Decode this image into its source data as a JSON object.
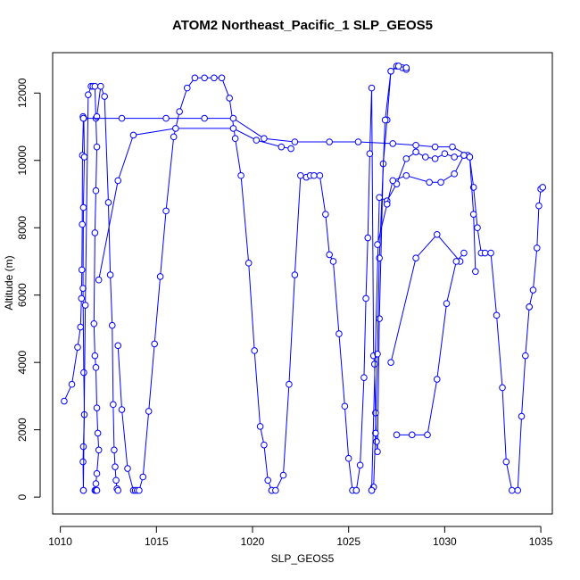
{
  "chart_data": {
    "type": "line",
    "title": "ATOM2 Northeast_Pacific_1 SLP_GEOS5",
    "xlabel": "SLP_GEOS5",
    "ylabel": "Altitude (m)",
    "xlim": [
      1009.6,
      1035.6
    ],
    "ylim": [
      -500,
      13200
    ],
    "x_ticks": [
      1010,
      1015,
      1020,
      1025,
      1030,
      1035
    ],
    "y_ticks": [
      0,
      2000,
      4000,
      6000,
      8000,
      10000,
      12000
    ],
    "grid": false,
    "marker": "open-circle",
    "line_color": "#0000ff",
    "series": [
      {
        "segment": "profile-1",
        "x": [
          1010.2,
          1010.6,
          1010.9,
          1011.05,
          1011.1,
          1011.12,
          1011.14,
          1011.15,
          1011.2,
          1011.18,
          1011.22,
          1011.25,
          1011.2,
          1011.18,
          1011.22,
          1011.25,
          1011.2,
          1011.18,
          1011.2
        ],
        "y": [
          2850,
          3350,
          4450,
          5050,
          5900,
          6750,
          8100,
          10150,
          11250,
          11300,
          11250,
          10100,
          8600,
          6200,
          3700,
          2450,
          1500,
          1050,
          200
        ]
      },
      {
        "segment": "profile-2",
        "x": [
          1011.2,
          1011.3,
          1011.45,
          1011.6,
          1011.7,
          1011.8,
          1011.85,
          1011.9,
          1011.85,
          1011.8,
          1011.75,
          1011.8,
          1011.85,
          1011.9,
          1011.95,
          1012.0,
          1011.9,
          1011.85,
          1011.8,
          1011.85,
          1011.9
        ],
        "y": [
          200,
          5700,
          11950,
          12200,
          12200,
          12200,
          11250,
          10400,
          9100,
          7850,
          5150,
          4200,
          3850,
          2650,
          1900,
          1400,
          700,
          400,
          200,
          200,
          200
        ]
      },
      {
        "segment": "profile-3",
        "x": [
          1011.9,
          1012.1,
          1012.3,
          1012.5,
          1012.6,
          1012.7,
          1012.75,
          1012.8,
          1012.85,
          1012.9,
          1012.95,
          1013.0
        ],
        "y": [
          11300,
          12200,
          11900,
          8750,
          6600,
          5100,
          2750,
          1400,
          900,
          500,
          250,
          200
        ]
      },
      {
        "segment": "profile-4",
        "x": [
          1013.0,
          1013.2,
          1013.5,
          1013.8,
          1013.9,
          1014.0,
          1014.1,
          1014.3,
          1014.6,
          1014.9,
          1015.2,
          1015.5,
          1015.9,
          1016.2,
          1016.6,
          1017.0,
          1017.5,
          1018.0,
          1018.4,
          1018.8,
          1019.1,
          1019.4,
          1019.8,
          1020.1,
          1020.4,
          1020.6,
          1020.8,
          1021.0
        ],
        "y": [
          4500,
          2600,
          850,
          200,
          200,
          200,
          200,
          600,
          2550,
          4550,
          6550,
          8500,
          10700,
          11450,
          12150,
          12450,
          12450,
          12450,
          12450,
          11850,
          10650,
          9550,
          6950,
          4350,
          2100,
          1550,
          500,
          200
        ]
      },
      {
        "segment": "profile-5",
        "x": [
          1021.0,
          1021.2,
          1021.6,
          1021.9,
          1022.2,
          1022.5,
          1022.8,
          1023.0,
          1023.2,
          1023.5,
          1023.8,
          1024.0,
          1024.2,
          1024.5,
          1024.8,
          1025.0,
          1025.2,
          1025.4
        ],
        "y": [
          200,
          200,
          650,
          3350,
          6600,
          9550,
          9500,
          9550,
          9550,
          9550,
          8400,
          7200,
          7000,
          4850,
          2700,
          1150,
          200,
          200
        ]
      },
      {
        "segment": "profile-6",
        "x": [
          1025.4,
          1025.6,
          1025.8,
          1025.9,
          1026.0,
          1026.1,
          1026.2,
          1026.3,
          1026.35,
          1026.4,
          1026.45,
          1026.5,
          1026.6,
          1026.8,
          1027.0,
          1027.2,
          1027.5,
          1027.8,
          1028.0
        ],
        "y": [
          200,
          950,
          3550,
          5900,
          7700,
          10200,
          12150,
          4200,
          3950,
          2500,
          1650,
          1350,
          5300,
          9900,
          11200,
          12650,
          12800,
          12750,
          12700
        ]
      },
      {
        "segment": "profile-7",
        "x": [
          1028.0,
          1027.6,
          1027.2,
          1026.9,
          1026.6,
          1026.5,
          1026.4,
          1026.3,
          1026.2
        ],
        "y": [
          12750,
          12800,
          12650,
          11200,
          7100,
          4250,
          1900,
          300,
          200
        ]
      },
      {
        "segment": "profile-8",
        "x": [
          1026.2,
          1026.6,
          1027.0,
          1027.5,
          1028.0,
          1028.5,
          1029.0,
          1029.5,
          1030.0,
          1030.5,
          1031.0,
          1031.3,
          1031.5,
          1031.7,
          1031.9,
          1032.1,
          1032.4,
          1032.7,
          1033.0,
          1033.2,
          1033.5,
          1033.8,
          1034.0,
          1034.2,
          1034.4
        ],
        "y": [
          200,
          8900,
          8800,
          9300,
          10050,
          10250,
          10100,
          10050,
          10200,
          10100,
          10150,
          10100,
          9200,
          8000,
          7250,
          7250,
          7250,
          5400,
          3250,
          1050,
          200,
          200,
          2400,
          4200,
          5650
        ]
      },
      {
        "segment": "profile-9",
        "x": [
          1034.4,
          1034.6,
          1034.8,
          1034.9,
          1035.0,
          1035.1
        ],
        "y": [
          5650,
          6150,
          7400,
          8650,
          9150,
          9200
        ]
      },
      {
        "segment": "profile-10",
        "x": [
          1011.2,
          1013.2,
          1015.5,
          1017.5,
          1019.0,
          1020.6,
          1022.2,
          1024.0,
          1025.5,
          1027.3,
          1028.5,
          1029.5,
          1030.4,
          1031.2
        ],
        "y": [
          11250,
          11250,
          11250,
          11250,
          11250,
          10650,
          10550,
          10550,
          10550,
          10500,
          10450,
          10400,
          10400,
          10150
        ]
      },
      {
        "segment": "profile-11",
        "x": [
          1012.0,
          1013.0,
          1013.8,
          1016.0,
          1019.0,
          1020.2,
          1021.5,
          1022.0
        ],
        "y": [
          6450,
          9400,
          10750,
          10950,
          10950,
          10600,
          10400,
          10350
        ]
      },
      {
        "segment": "profile-12",
        "x": [
          1026.5,
          1027.0,
          1027.3,
          1028.0,
          1029.2,
          1029.8,
          1030.5,
          1031.0,
          1031.3,
          1031.5,
          1031.6
        ],
        "y": [
          7500,
          8700,
          9400,
          9550,
          9350,
          9350,
          9600,
          10150,
          10100,
          8400,
          6700
        ]
      },
      {
        "segment": "profile-13",
        "x": [
          1027.2,
          1028.5,
          1029.6,
          1030.8
        ],
        "y": [
          4000,
          7100,
          7800,
          7000
        ]
      },
      {
        "segment": "profile-14",
        "x": [
          1027.5,
          1028.3,
          1029.1,
          1029.6,
          1030.1,
          1030.6,
          1031.0
        ],
        "y": [
          1850,
          1850,
          1850,
          3500,
          5750,
          7000,
          7250
        ]
      }
    ]
  }
}
